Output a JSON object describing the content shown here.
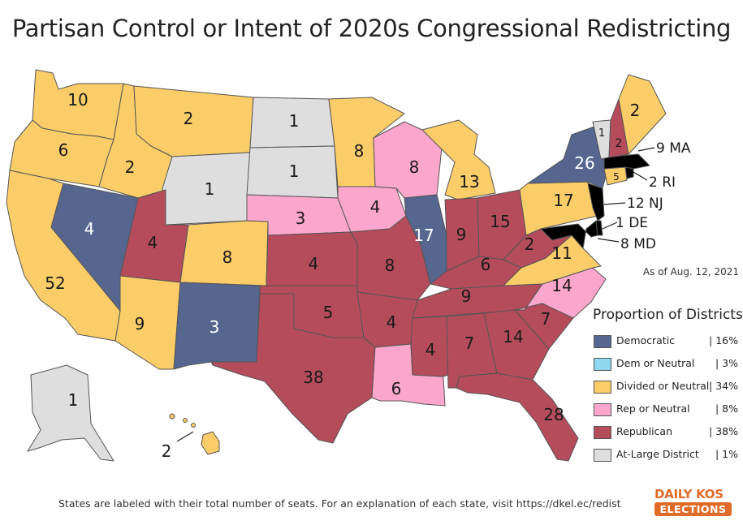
{
  "title": "Partisan Control or Intent of 2020s Congressional Redistricting",
  "as_of": "As of Aug. 12, 2021",
  "legend": {
    "title": "Proportion of Districts",
    "items": [
      {
        "label": "Democratic",
        "pct": "| 16%",
        "color": "#56668f"
      },
      {
        "label": "Dem or Neutral",
        "pct": "|   3%",
        "color": "#8fd9ee"
      },
      {
        "label": "Divided or Neutral",
        "pct": "| 34%",
        "color": "#fbcd69"
      },
      {
        "label": "Rep or Neutral",
        "pct": "|   8%",
        "color": "#fba6cc"
      },
      {
        "label": "Republican",
        "pct": "| 38%",
        "color": "#b54c5c"
      },
      {
        "label": "At-Large District",
        "pct": "|   1%",
        "color": "#dedede"
      }
    ]
  },
  "footer": "States are labeled with their total number of seats. For an explanation of each state, visit https://dkel.ec/redist",
  "logo": {
    "top": "DAILY KOS",
    "bottom": "ELECTIONS"
  },
  "states": {
    "WA": {
      "seats": "10",
      "category": "Divided or Neutral"
    },
    "OR": {
      "seats": "6",
      "category": "Divided or Neutral"
    },
    "CA": {
      "seats": "52",
      "category": "Divided or Neutral"
    },
    "NV": {
      "seats": "4",
      "category": "Democratic"
    },
    "ID": {
      "seats": "2",
      "category": "Divided or Neutral"
    },
    "MT": {
      "seats": "2",
      "category": "Divided or Neutral"
    },
    "WY": {
      "seats": "1",
      "category": "At-Large District"
    },
    "UT": {
      "seats": "4",
      "category": "Republican"
    },
    "AZ": {
      "seats": "9",
      "category": "Divided or Neutral"
    },
    "CO": {
      "seats": "8",
      "category": "Divided or Neutral"
    },
    "NM": {
      "seats": "3",
      "category": "Democratic"
    },
    "ND": {
      "seats": "1",
      "category": "At-Large District"
    },
    "SD": {
      "seats": "1",
      "category": "At-Large District"
    },
    "NE": {
      "seats": "3",
      "category": "Rep or Neutral"
    },
    "KS": {
      "seats": "4",
      "category": "Republican"
    },
    "OK": {
      "seats": "5",
      "category": "Republican"
    },
    "TX": {
      "seats": "38",
      "category": "Republican"
    },
    "MN": {
      "seats": "8",
      "category": "Divided or Neutral"
    },
    "IA": {
      "seats": "4",
      "category": "Rep or Neutral"
    },
    "MO": {
      "seats": "8",
      "category": "Republican"
    },
    "AR": {
      "seats": "4",
      "category": "Republican"
    },
    "LA": {
      "seats": "6",
      "category": "Rep or Neutral"
    },
    "WI": {
      "seats": "8",
      "category": "Rep or Neutral"
    },
    "IL": {
      "seats": "17",
      "category": "Democratic"
    },
    "MI": {
      "seats": "13",
      "category": "Divided or Neutral"
    },
    "IN": {
      "seats": "9",
      "category": "Republican"
    },
    "OH": {
      "seats": "15",
      "category": "Republican"
    },
    "KY": {
      "seats": "6",
      "category": "Republican"
    },
    "TN": {
      "seats": "9",
      "category": "Republican"
    },
    "MS": {
      "seats": "4",
      "category": "Republican"
    },
    "AL": {
      "seats": "7",
      "category": "Republican"
    },
    "GA": {
      "seats": "14",
      "category": "Republican"
    },
    "FL": {
      "seats": "28",
      "category": "Republican"
    },
    "SC": {
      "seats": "7",
      "category": "Republican"
    },
    "NC": {
      "seats": "14",
      "category": "Rep or Neutral"
    },
    "VA": {
      "seats": "11",
      "category": "Divided or Neutral"
    },
    "WV": {
      "seats": "2",
      "category": "Republican"
    },
    "PA": {
      "seats": "17",
      "category": "Divided or Neutral"
    },
    "NY": {
      "seats": "26",
      "category": "Democratic"
    },
    "VT": {
      "seats": "1",
      "category": "At-Large District"
    },
    "NH": {
      "seats": "2",
      "category": "Republican"
    },
    "ME": {
      "seats": "2",
      "category": "Divided or Neutral"
    },
    "CT": {
      "seats": "5",
      "category": "Divided or Neutral"
    },
    "AK": {
      "seats": "1",
      "category": "At-Large District"
    },
    "HI": {
      "seats": "2",
      "category": "Divided or Neutral"
    }
  },
  "callouts": {
    "MA": "9 MA",
    "RI": "2 RI",
    "NJ": "12 NJ",
    "DE": "1 DE",
    "MD": "8 MD"
  }
}
